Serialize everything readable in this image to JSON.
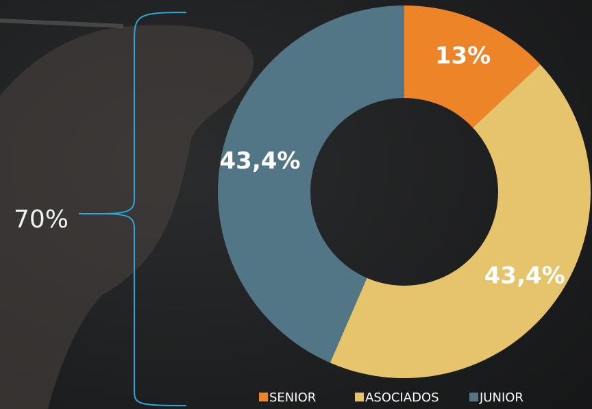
{
  "chart_data": {
    "type": "donut",
    "categories": [
      "SENIOR",
      "ASOCIADOS",
      "JUNIOR"
    ],
    "values": [
      13,
      43.4,
      43.4
    ],
    "value_labels": [
      "13%",
      "43,4%",
      "43,4%"
    ],
    "colors": [
      "#ed8428",
      "#e6c46c",
      "#537687"
    ],
    "annotation": "70%"
  }
}
